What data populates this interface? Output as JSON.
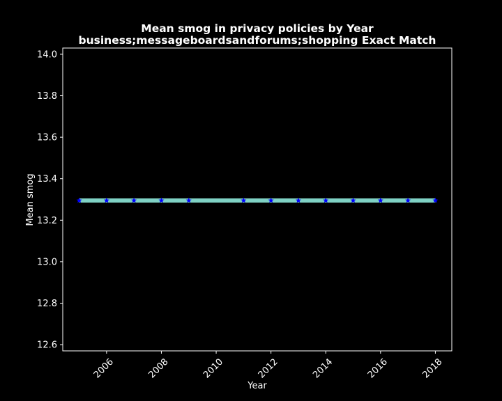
{
  "chart_data": {
    "type": "line",
    "title": "Mean smog in privacy policies by Year",
    "subtitle": "business;messageboardsandforums;shopping Exact Match",
    "xlabel": "Year",
    "ylabel": "Mean smog",
    "xlim": [
      2004.4,
      2018.6
    ],
    "ylim": [
      12.57,
      14.03
    ],
    "xticks": [
      2006,
      2008,
      2010,
      2012,
      2014,
      2016,
      2018
    ],
    "xtick_labels": [
      "2006",
      "2008",
      "2010",
      "2012",
      "2014",
      "2016",
      "2018"
    ],
    "yticks": [
      12.6,
      12.8,
      13.0,
      13.2,
      13.4,
      13.6,
      13.8,
      14.0
    ],
    "ytick_labels": [
      "12.6",
      "12.8",
      "13.0",
      "13.2",
      "13.4",
      "13.6",
      "13.8",
      "14.0"
    ],
    "grid": false,
    "series": [
      {
        "x": [
          2005,
          2006,
          2007,
          2008,
          2009,
          2011,
          2012,
          2013,
          2014,
          2015,
          2016,
          2017,
          2018
        ],
        "y": [
          13.295,
          13.295,
          13.295,
          13.295,
          13.295,
          13.295,
          13.295,
          13.295,
          13.295,
          13.295,
          13.295,
          13.295,
          13.295
        ],
        "marker": "star",
        "marker_color": "#0000ff"
      }
    ],
    "band": {
      "x": [
        2005,
        2018
      ],
      "lower": 13.285,
      "upper": 13.305,
      "color": "#7fd1c4"
    },
    "colors": {
      "background": "#000000",
      "axes": "#ffffff",
      "text": "#ffffff"
    }
  }
}
